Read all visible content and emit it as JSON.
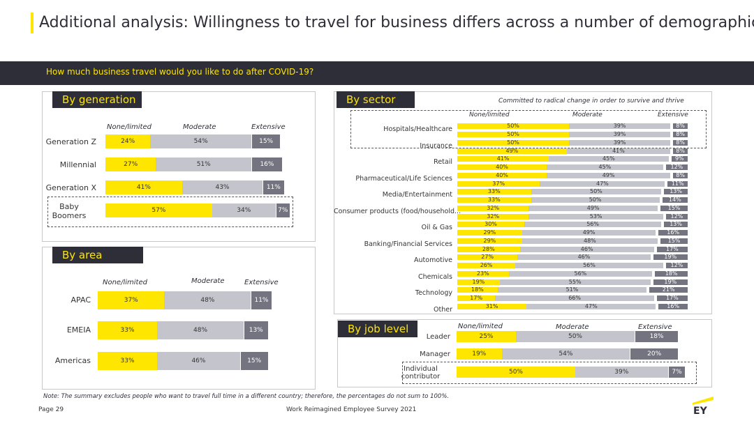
{
  "title": "Additional analysis: Willingness to travel for business differs across a number of demographics",
  "question": "How much business travel would you like to do after COVID-19?",
  "legend": {
    "none": "None/limited",
    "moderate": "Moderate",
    "extensive": "Extensive"
  },
  "colors": {
    "none": "#ffe600",
    "moderate": "#c4c4cd",
    "extensive": "#747480",
    "dark": "#2e2e38"
  },
  "generation": {
    "header": "By generation",
    "rows": [
      {
        "label": "Generation Z",
        "values": [
          24,
          54,
          15
        ],
        "texts": [
          "24%",
          "54%",
          "15%"
        ]
      },
      {
        "label": "Millennial",
        "values": [
          27,
          51,
          16
        ],
        "texts": [
          "27%",
          "51%",
          "16%"
        ]
      },
      {
        "label": "Generation X",
        "values": [
          41,
          43,
          11
        ],
        "texts": [
          "41%",
          "43%",
          "11%"
        ]
      },
      {
        "label": "Baby Boomers",
        "values": [
          57,
          34,
          7
        ],
        "texts": [
          "57%",
          "34%",
          "7%"
        ]
      }
    ]
  },
  "area": {
    "header": "By area",
    "rows": [
      {
        "label": "APAC",
        "values": [
          37,
          48,
          11
        ],
        "texts": [
          "37%",
          "48%",
          "11%"
        ]
      },
      {
        "label": "EMEIA",
        "values": [
          33,
          48,
          13
        ],
        "texts": [
          "33%",
          "48%",
          "13%"
        ]
      },
      {
        "label": "Americas",
        "values": [
          33,
          46,
          15
        ],
        "texts": [
          "33%",
          "46%",
          "15%"
        ]
      }
    ]
  },
  "sector": {
    "header": "By sector",
    "subtitle": "Committed to radical change in order to survive and thrive",
    "rows": [
      {
        "label": "Hospitals/Healthcare",
        "a": [
          50,
          39,
          8
        ],
        "at": [
          "50%",
          "39%",
          "8%"
        ],
        "b": [
          50,
          39,
          8
        ],
        "bt": [
          "50%",
          "39%",
          "8%"
        ]
      },
      {
        "label": "Insurance",
        "a": [
          50,
          39,
          8
        ],
        "at": [
          "50%",
          "39%",
          "8%"
        ],
        "b": [
          49,
          41,
          8
        ],
        "bt": [
          "49%",
          "41%",
          "8%"
        ]
      },
      {
        "label": "Retail",
        "a": [
          41,
          45,
          9
        ],
        "at": [
          "41%",
          "45%",
          "9%"
        ],
        "b": [
          40,
          45,
          12
        ],
        "bt": [
          "40%",
          "45%",
          "12%"
        ]
      },
      {
        "label": "Pharmaceutical/Life Sciences",
        "a": [
          40,
          49,
          8
        ],
        "at": [
          "40%",
          "49%",
          "8%"
        ],
        "b": [
          37,
          47,
          11
        ],
        "bt": [
          "37%",
          "47%",
          "11%"
        ]
      },
      {
        "label": "Media/Entertainment",
        "a": [
          33,
          50,
          13
        ],
        "at": [
          "33%",
          "50%",
          "13%"
        ],
        "b": [
          33,
          50,
          14
        ],
        "bt": [
          "33%",
          "50%",
          "14%"
        ]
      },
      {
        "label": "Consumer products (food/household...",
        "a": [
          32,
          49,
          15
        ],
        "at": [
          "32%",
          "49%",
          "15%"
        ],
        "b": [
          32,
          53,
          12
        ],
        "bt": [
          "32%",
          "53%",
          "12%"
        ]
      },
      {
        "label": "Oil & Gas",
        "a": [
          30,
          56,
          13
        ],
        "at": [
          "30%",
          "56%",
          "13%"
        ],
        "b": [
          29,
          49,
          16
        ],
        "bt": [
          "29%",
          "49%",
          "16%"
        ]
      },
      {
        "label": "Banking/Financial Services",
        "a": [
          29,
          48,
          15
        ],
        "at": [
          "29%",
          "48%",
          "15%"
        ],
        "b": [
          28,
          46,
          17
        ],
        "bt": [
          "28%",
          "46%",
          "17%"
        ]
      },
      {
        "label": "Automotive",
        "a": [
          27,
          46,
          19
        ],
        "at": [
          "27%",
          "46%",
          "19%"
        ],
        "b": [
          26,
          56,
          12
        ],
        "bt": [
          "26%",
          "56%",
          "12%"
        ]
      },
      {
        "label": "Chemicals",
        "a": [
          23,
          56,
          18
        ],
        "at": [
          "23%",
          "56%",
          "18%"
        ],
        "b": [
          19,
          55,
          19
        ],
        "bt": [
          "19%",
          "55%",
          "19%"
        ]
      },
      {
        "label": "Technology",
        "a": [
          18,
          51,
          21
        ],
        "at": [
          "18%",
          "51%",
          "21%"
        ],
        "b": [
          17,
          66,
          17
        ],
        "bt": [
          "17%",
          "66%",
          "17%"
        ]
      },
      {
        "label": "Other",
        "a": [
          31,
          47,
          16
        ],
        "at": [
          "31%",
          "47%",
          "16%"
        ]
      }
    ]
  },
  "joblevel": {
    "header": "By job level",
    "rows": [
      {
        "label": "Leader",
        "values": [
          25,
          50,
          18
        ],
        "texts": [
          "25%",
          "50%",
          "18%"
        ]
      },
      {
        "label": "Manager",
        "values": [
          19,
          54,
          20
        ],
        "texts": [
          "19%",
          "54%",
          "20%"
        ]
      },
      {
        "label": "Individual contributor",
        "values": [
          50,
          39,
          7
        ],
        "texts": [
          "50%",
          "39%",
          "7%"
        ]
      }
    ]
  },
  "note": "Note: The summary excludes people who want to travel full time in a different country; therefore, the percentages do not sum to 100%.",
  "footer": {
    "page": "Page 29",
    "survey": "Work Reimagined Employee Survey 2021",
    "logo": "EY"
  },
  "chart_data": [
    {
      "type": "bar",
      "title": "By generation",
      "categories": [
        "Generation Z",
        "Millennial",
        "Generation X",
        "Baby Boomers"
      ],
      "series": [
        {
          "name": "None/limited",
          "values": [
            24,
            27,
            41,
            57
          ]
        },
        {
          "name": "Moderate",
          "values": [
            54,
            51,
            43,
            34
          ]
        },
        {
          "name": "Extensive",
          "values": [
            15,
            16,
            11,
            7
          ]
        }
      ]
    },
    {
      "type": "bar",
      "title": "By area",
      "categories": [
        "APAC",
        "EMEIA",
        "Americas"
      ],
      "series": [
        {
          "name": "None/limited",
          "values": [
            37,
            33,
            33
          ]
        },
        {
          "name": "Moderate",
          "values": [
            48,
            48,
            46
          ]
        },
        {
          "name": "Extensive",
          "values": [
            11,
            13,
            15
          ]
        }
      ]
    },
    {
      "type": "bar",
      "title": "By sector",
      "subtitle": "Committed to radical change in order to survive and thrive",
      "categories": [
        "Hospitals/Healthcare",
        "Insurance",
        "Retail",
        "Pharmaceutical/Life Sciences",
        "Media/Entertainment",
        "Consumer products (food/household...",
        "Oil & Gas",
        "Banking/Financial Services",
        "Automotive",
        "Chemicals",
        "Technology",
        "Other"
      ],
      "series": [
        {
          "name": "None/limited",
          "values": [
            50,
            50,
            41,
            40,
            33,
            32,
            30,
            29,
            27,
            23,
            18,
            31
          ]
        },
        {
          "name": "Moderate",
          "values": [
            39,
            39,
            45,
            49,
            50,
            49,
            56,
            48,
            46,
            56,
            51,
            47
          ]
        },
        {
          "name": "Extensive",
          "values": [
            8,
            8,
            9,
            8,
            13,
            15,
            13,
            15,
            19,
            18,
            21,
            16
          ]
        }
      ]
    },
    {
      "type": "bar",
      "title": "By job level",
      "categories": [
        "Leader",
        "Manager",
        "Individual contributor"
      ],
      "series": [
        {
          "name": "None/limited",
          "values": [
            25,
            19,
            50
          ]
        },
        {
          "name": "Moderate",
          "values": [
            50,
            54,
            39
          ]
        },
        {
          "name": "Extensive",
          "values": [
            18,
            20,
            7
          ]
        }
      ]
    }
  ]
}
